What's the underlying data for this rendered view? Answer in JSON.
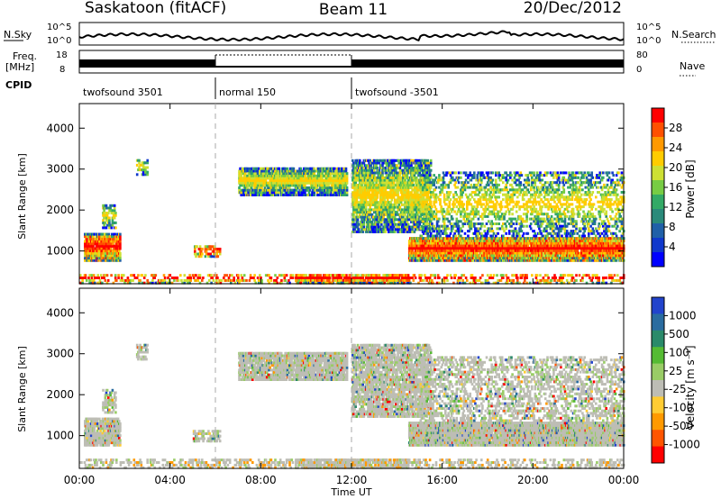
{
  "header": {
    "station": "Saskatoon (fitACF)",
    "beam": "Beam 11",
    "date": "20/Dec/2012"
  },
  "strip": {
    "nsky_label": "N.Sky",
    "nsearch_label": "N.Search",
    "freq_label_1": "Freq.",
    "freq_label_2": "[MHz]",
    "nave_label": "Nave",
    "cpid_label": "CPID",
    "nsky_ticks": [
      "10^5",
      "10^0"
    ],
    "nsearch_ticks": [
      "10^5",
      "10^0"
    ],
    "freq_ticks": [
      "18",
      "8"
    ],
    "nave_ticks": [
      "80",
      "0"
    ]
  },
  "cpid_segments": [
    {
      "label": "twofsound 3501",
      "start_hour": 0,
      "end_hour": 6
    },
    {
      "label": "normal 150",
      "start_hour": 6,
      "end_hour": 12
    },
    {
      "label": "twofsound -3501",
      "start_hour": 12,
      "end_hour": 24
    }
  ],
  "chart_data": [
    {
      "type": "heatmap",
      "name": "power",
      "ylabel": "Slant Range [km]",
      "y_ticks": [
        1000,
        2000,
        3000,
        4000
      ],
      "ylim": [
        200,
        4600
      ],
      "colorbar": {
        "label": "Power [dB]",
        "tick_labels": [
          "28",
          "24",
          "20",
          "16",
          "12",
          "8",
          "4"
        ],
        "colors": [
          "#ff0000",
          "#ff5000",
          "#ff9900",
          "#ffcc00",
          "#cde034",
          "#77cc44",
          "#33aa66",
          "#2a8a7a",
          "#2060a8",
          "#1038cc",
          "#0000ff"
        ]
      }
    },
    {
      "type": "heatmap",
      "name": "velocity",
      "ylabel": "Slant Range [km]",
      "y_ticks": [
        1000,
        2000,
        3000,
        4000
      ],
      "ylim": [
        200,
        4600
      ],
      "colorbar": {
        "label": "Velocity [m s⁻¹]",
        "tick_labels": [
          "1000",
          "500",
          "100",
          "25",
          "-25",
          "-100",
          "-500",
          "-1000"
        ],
        "colors": [
          "#2244cc",
          "#2a6ca0",
          "#2a8a6a",
          "#55bb33",
          "#99cc66",
          "#bdbdb5",
          "#ffcc33",
          "#ff9900",
          "#ff5500",
          "#ff0000"
        ]
      }
    }
  ],
  "x_axis": {
    "label": "Time UT",
    "ticks": [
      "00:00",
      "04:00",
      "08:00",
      "12:00",
      "16:00",
      "20:00",
      "00:00"
    ],
    "xlim_hours": [
      0,
      24
    ]
  }
}
